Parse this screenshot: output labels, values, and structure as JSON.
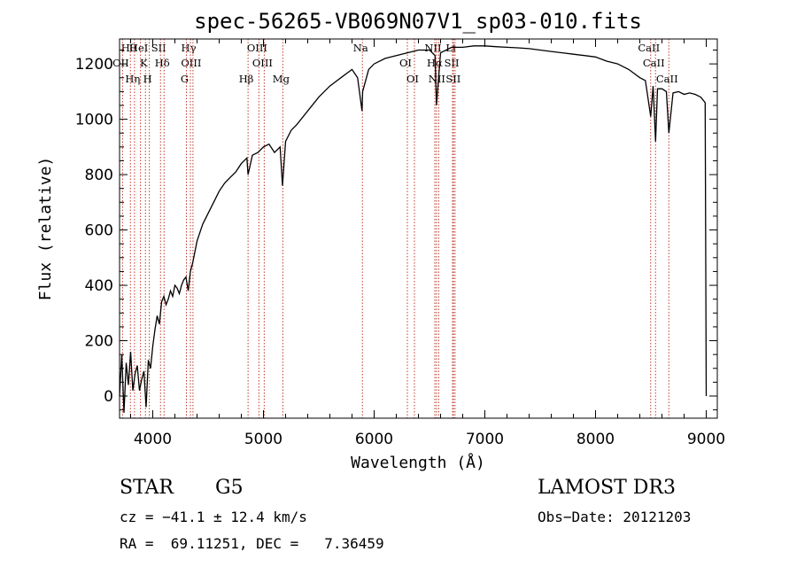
{
  "chart_data": {
    "type": "line",
    "title": "spec-56265-VB069N07V1_sp03-010.fits",
    "xlabel": "Wavelength (Å)",
    "ylabel": "Flux (relative)",
    "xlim": [
      3700,
      9100
    ],
    "ylim": [
      -80,
      1290
    ],
    "x_ticks": [
      4000,
      5000,
      6000,
      7000,
      8000,
      9000
    ],
    "y_ticks": [
      0,
      200,
      400,
      600,
      800,
      1000,
      1200
    ],
    "grid": false,
    "series": [
      {
        "color": "#000000",
        "x": [
          3700,
          3720,
          3740,
          3760,
          3780,
          3800,
          3820,
          3840,
          3860,
          3880,
          3900,
          3920,
          3940,
          3960,
          3980,
          4000,
          4020,
          4040,
          4060,
          4080,
          4100,
          4120,
          4140,
          4160,
          4180,
          4200,
          4220,
          4240,
          4260,
          4280,
          4300,
          4320,
          4340,
          4360,
          4380,
          4400,
          4450,
          4500,
          4550,
          4600,
          4650,
          4700,
          4750,
          4800,
          4850,
          4861,
          4900,
          4950,
          5000,
          5050,
          5100,
          5150,
          5172,
          5200,
          5250,
          5300,
          5400,
          5500,
          5600,
          5700,
          5800,
          5850,
          5890,
          5896,
          5950,
          6000,
          6100,
          6200,
          6300,
          6400,
          6500,
          6550,
          6563,
          6600,
          6650,
          6700,
          6800,
          6900,
          7000,
          7100,
          7200,
          7300,
          7400,
          7500,
          7600,
          7700,
          7800,
          7900,
          8000,
          8100,
          8200,
          8300,
          8400,
          8450,
          8498,
          8520,
          8542,
          8560,
          8600,
          8640,
          8662,
          8700,
          8750,
          8800,
          8850,
          8900,
          8950,
          8990,
          9000
        ],
        "y": [
          0,
          150,
          -60,
          120,
          40,
          160,
          20,
          80,
          110,
          20,
          60,
          90,
          -40,
          130,
          100,
          180,
          240,
          290,
          260,
          340,
          360,
          330,
          350,
          380,
          360,
          400,
          390,
          370,
          400,
          420,
          430,
          380,
          450,
          480,
          520,
          560,
          620,
          660,
          700,
          740,
          770,
          790,
          810,
          840,
          860,
          800,
          870,
          880,
          900,
          910,
          880,
          900,
          760,
          920,
          960,
          980,
          1030,
          1080,
          1120,
          1150,
          1180,
          1150,
          1030,
          1100,
          1180,
          1200,
          1220,
          1230,
          1240,
          1250,
          1250,
          1230,
          1050,
          1240,
          1250,
          1260,
          1260,
          1265,
          1265,
          1262,
          1260,
          1258,
          1255,
          1250,
          1245,
          1240,
          1235,
          1230,
          1225,
          1210,
          1200,
          1180,
          1150,
          1140,
          1010,
          1120,
          920,
          1110,
          1110,
          1100,
          950,
          1095,
          1100,
          1090,
          1095,
          1090,
          1080,
          1060,
          0
        ]
      }
    ],
    "lines": [
      {
        "name": "Hθ",
        "wave": 3798
      },
      {
        "name": "OII",
        "wave": 3727
      },
      {
        "name": "Hη",
        "wave": 3835
      },
      {
        "name": "HeI",
        "wave": 3889
      },
      {
        "name": "K",
        "wave": 3934
      },
      {
        "name": "H",
        "wave": 3969
      },
      {
        "name": "SII",
        "wave": 4070
      },
      {
        "name": "Hδ",
        "wave": 4102
      },
      {
        "name": "G",
        "wave": 4304
      },
      {
        "name": "Hγ",
        "wave": 4340
      },
      {
        "name": "OIII",
        "wave": 4363
      },
      {
        "name": "Hβ",
        "wave": 4861
      },
      {
        "name": "OIII",
        "wave": 4959
      },
      {
        "name": "OIII",
        "wave": 5007
      },
      {
        "name": "Mg",
        "wave": 5175
      },
      {
        "name": "Na",
        "wave": 5894
      },
      {
        "name": "OI",
        "wave": 6300
      },
      {
        "name": "OI",
        "wave": 6364
      },
      {
        "name": "NII",
        "wave": 6548
      },
      {
        "name": "Hα",
        "wave": 6563
      },
      {
        "name": "NII",
        "wave": 6583
      },
      {
        "name": "Li",
        "wave": 6708
      },
      {
        "name": "SII",
        "wave": 6717
      },
      {
        "name": "SII",
        "wave": 6731
      },
      {
        "name": "CaII",
        "wave": 8498
      },
      {
        "name": "CaII",
        "wave": 8542
      },
      {
        "name": "CaII",
        "wave": 8662
      }
    ]
  },
  "info": {
    "class": "STAR",
    "subclass": "G5",
    "survey": "LAMOST DR3",
    "cz": "cz = −41.1 ± 12.4 km/s",
    "obs_date": "Obs−Date: 20121203",
    "coords": "RA =  69.11251, DEC =   7.36459"
  }
}
